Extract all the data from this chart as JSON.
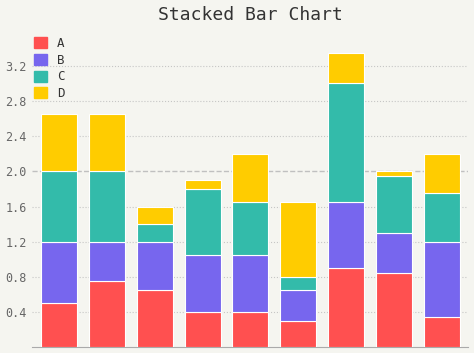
{
  "title": "Stacked Bar Chart",
  "series": {
    "A": [
      0.5,
      0.75,
      0.65,
      0.4,
      0.4,
      0.3,
      0.9,
      0.85,
      0.35
    ],
    "B": [
      0.7,
      0.45,
      0.55,
      0.65,
      0.65,
      0.35,
      0.75,
      0.45,
      0.85
    ],
    "C": [
      0.8,
      0.8,
      0.2,
      0.75,
      0.6,
      0.15,
      1.35,
      0.65,
      0.55
    ],
    "D": [
      0.65,
      0.65,
      0.2,
      0.1,
      0.55,
      0.85,
      0.35,
      0.05,
      0.45
    ]
  },
  "colors": {
    "A": "#FF5050",
    "B": "#7766EE",
    "C": "#33BBAA",
    "D": "#FFCC00"
  },
  "bg_color": "#F5F5F0",
  "grid_color": "#BBBBBB",
  "ylim": [
    0,
    3.6
  ],
  "yticks": [
    0,
    0.4,
    0.8,
    1.2,
    1.6,
    2.0,
    2.4,
    2.8,
    3.2
  ],
  "title_fontsize": 13,
  "bar_width": 0.75
}
